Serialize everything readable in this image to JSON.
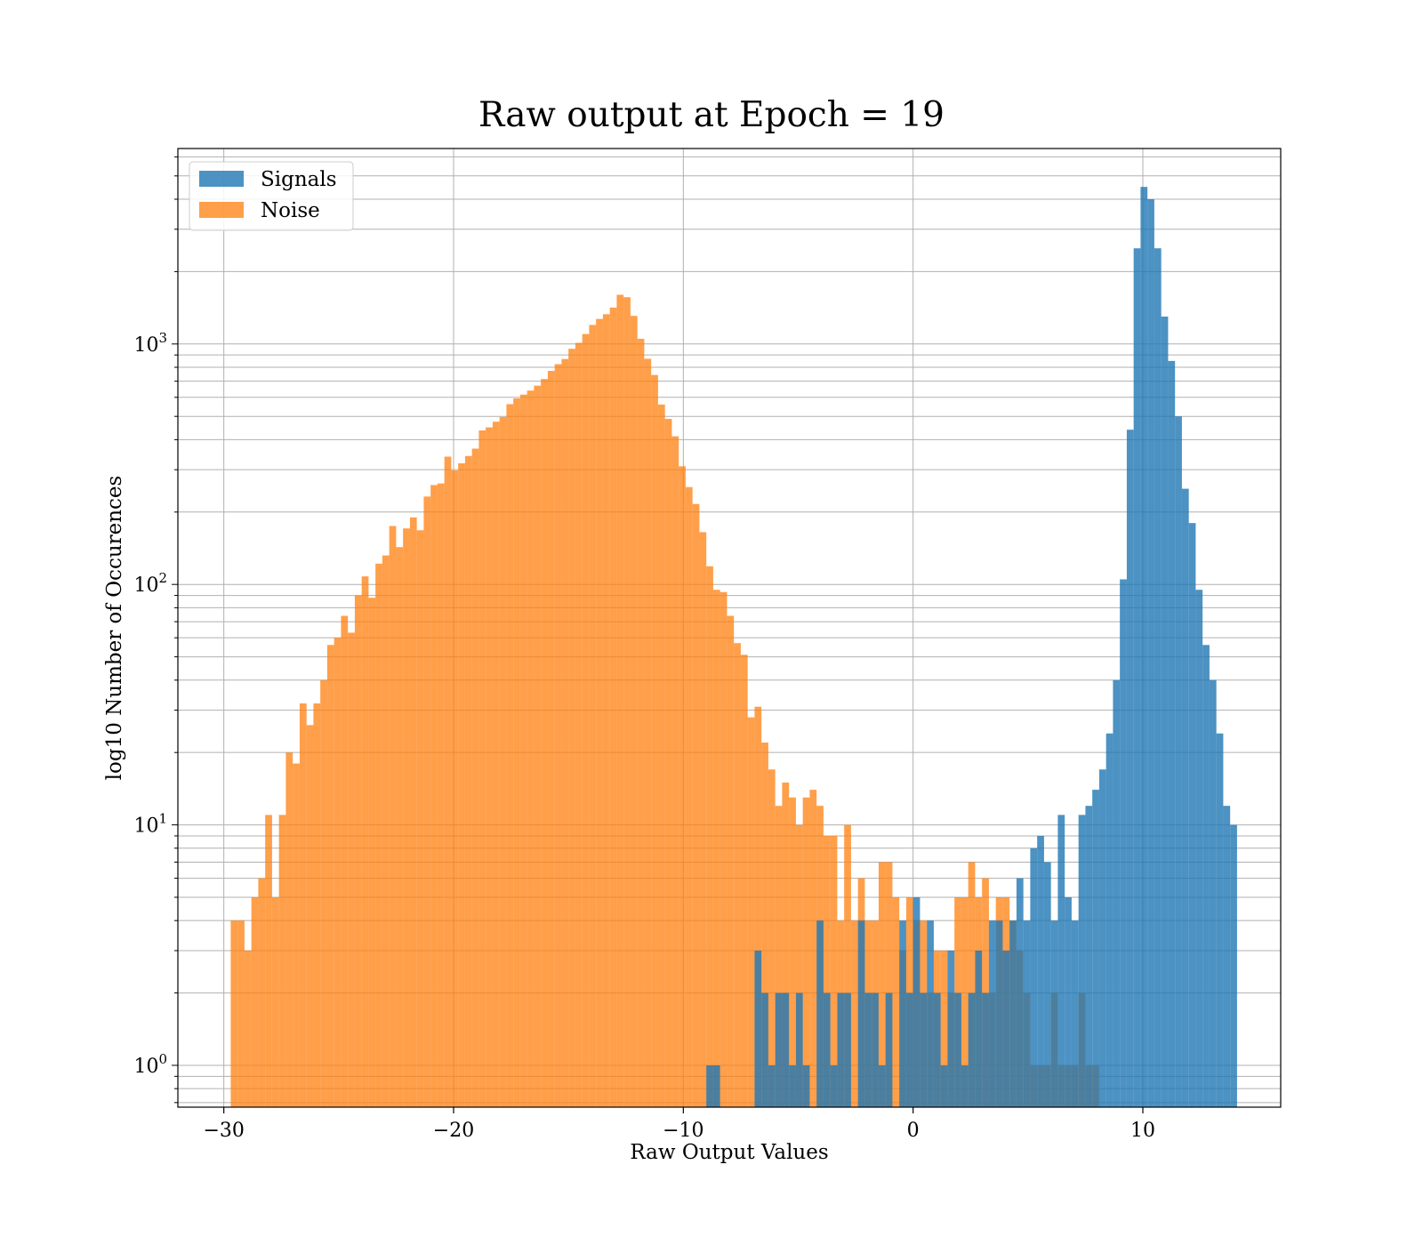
{
  "chart_data": {
    "type": "histogram",
    "title": "Raw output at Epoch = 19",
    "xlabel": "Raw Output Values",
    "ylabel": "log10 Number of Occurences",
    "xscale": "linear",
    "yscale": "log",
    "xlim": [
      -32,
      16
    ],
    "ylim": [
      0.67,
      6500
    ],
    "xticks": [
      -30,
      -20,
      -10,
      0,
      10
    ],
    "xtick_labels": [
      "−30",
      "−20",
      "−10",
      "0",
      "10"
    ],
    "yticks": [
      1,
      10,
      100,
      1000
    ],
    "ytick_labels": [
      {
        "base": "10",
        "exp": "0"
      },
      {
        "base": "10",
        "exp": "1"
      },
      {
        "base": "10",
        "exp": "2"
      },
      {
        "base": "10",
        "exp": "3"
      }
    ],
    "grid": true,
    "legend": {
      "position": "top-left",
      "entries": [
        "Signals",
        "Noise"
      ]
    },
    "bin_width": 0.3,
    "series": [
      {
        "name": "Noise",
        "color": "#ff7f0e",
        "opacity": 0.75,
        "bins": [
          [
            -29.7,
            -29.4,
            4
          ],
          [
            -29.4,
            -29.1,
            4
          ],
          [
            -29.1,
            -28.8,
            3
          ],
          [
            -28.8,
            -28.5,
            5
          ],
          [
            -28.5,
            -28.2,
            6
          ],
          [
            -28.2,
            -27.9,
            11
          ],
          [
            -27.9,
            -27.6,
            5
          ],
          [
            -27.6,
            -27.3,
            11
          ],
          [
            -27.3,
            -27.0,
            20
          ],
          [
            -27.0,
            -26.7,
            18
          ],
          [
            -26.7,
            -26.4,
            32
          ],
          [
            -26.4,
            -26.1,
            26
          ],
          [
            -26.1,
            -25.8,
            32
          ],
          [
            -25.8,
            -25.5,
            40
          ],
          [
            -25.5,
            -25.2,
            56
          ],
          [
            -25.2,
            -24.9,
            60
          ],
          [
            -24.9,
            -24.6,
            74
          ],
          [
            -24.6,
            -24.3,
            63
          ],
          [
            -24.3,
            -24.0,
            90
          ],
          [
            -24.0,
            -23.7,
            108
          ],
          [
            -23.7,
            -23.4,
            88
          ],
          [
            -23.4,
            -23.1,
            122
          ],
          [
            -23.1,
            -22.8,
            132
          ],
          [
            -22.8,
            -22.5,
            175
          ],
          [
            -22.5,
            -22.2,
            143
          ],
          [
            -22.2,
            -21.9,
            171
          ],
          [
            -21.9,
            -21.6,
            190
          ],
          [
            -21.6,
            -21.3,
            168
          ],
          [
            -21.3,
            -21.0,
            232
          ],
          [
            -21.0,
            -20.7,
            259
          ],
          [
            -20.7,
            -20.4,
            263
          ],
          [
            -20.4,
            -20.1,
            340
          ],
          [
            -20.1,
            -19.8,
            298
          ],
          [
            -19.8,
            -19.5,
            319
          ],
          [
            -19.5,
            -19.2,
            342
          ],
          [
            -19.2,
            -18.9,
            367
          ],
          [
            -18.9,
            -18.6,
            437
          ],
          [
            -18.6,
            -18.3,
            450
          ],
          [
            -18.3,
            -18.0,
            475
          ],
          [
            -18.0,
            -17.7,
            497
          ],
          [
            -17.7,
            -17.4,
            562
          ],
          [
            -17.4,
            -17.1,
            594
          ],
          [
            -17.1,
            -16.8,
            616
          ],
          [
            -16.8,
            -16.5,
            640
          ],
          [
            -16.5,
            -16.2,
            671
          ],
          [
            -16.2,
            -15.9,
            715
          ],
          [
            -15.9,
            -15.6,
            773
          ],
          [
            -15.6,
            -15.3,
            824
          ],
          [
            -15.3,
            -15.0,
            866
          ],
          [
            -15.0,
            -14.7,
            955
          ],
          [
            -14.7,
            -14.4,
            1011
          ],
          [
            -14.4,
            -14.1,
            1100
          ],
          [
            -14.1,
            -13.8,
            1200
          ],
          [
            -13.8,
            -13.5,
            1271
          ],
          [
            -13.5,
            -13.2,
            1330
          ],
          [
            -13.2,
            -12.9,
            1417
          ],
          [
            -12.9,
            -12.6,
            1602
          ],
          [
            -12.6,
            -12.3,
            1565
          ],
          [
            -12.3,
            -12.0,
            1309
          ],
          [
            -12.0,
            -11.7,
            1051
          ],
          [
            -11.7,
            -11.4,
            868
          ],
          [
            -11.4,
            -11.1,
            743
          ],
          [
            -11.1,
            -10.8,
            560
          ],
          [
            -10.8,
            -10.5,
            488
          ],
          [
            -10.5,
            -10.2,
            413
          ],
          [
            -10.2,
            -9.9,
            310
          ],
          [
            -9.9,
            -9.6,
            254
          ],
          [
            -9.6,
            -9.3,
            216
          ],
          [
            -9.3,
            -9.0,
            165
          ],
          [
            -9.0,
            -8.7,
            119
          ],
          [
            -8.7,
            -8.4,
            95
          ],
          [
            -8.4,
            -8.1,
            93
          ],
          [
            -8.1,
            -7.8,
            74
          ],
          [
            -7.8,
            -7.5,
            57
          ],
          [
            -7.5,
            -7.2,
            51
          ],
          [
            -7.2,
            -6.9,
            28
          ],
          [
            -6.9,
            -6.6,
            31
          ],
          [
            -6.6,
            -6.3,
            22
          ],
          [
            -6.3,
            -6.0,
            17
          ],
          [
            -6.0,
            -5.7,
            12
          ],
          [
            -5.7,
            -5.4,
            15
          ],
          [
            -5.4,
            -5.1,
            13
          ],
          [
            -5.1,
            -4.8,
            10
          ],
          [
            -4.8,
            -4.5,
            13
          ],
          [
            -4.5,
            -4.2,
            14
          ],
          [
            -4.2,
            -3.9,
            12
          ],
          [
            -3.9,
            -3.6,
            9
          ],
          [
            -3.6,
            -3.3,
            9
          ],
          [
            -3.3,
            -3.0,
            4
          ],
          [
            -3.0,
            -2.7,
            10
          ],
          [
            -2.7,
            -2.4,
            4
          ],
          [
            -2.4,
            -2.1,
            6
          ],
          [
            -2.1,
            -1.8,
            4
          ],
          [
            -1.8,
            -1.5,
            4
          ],
          [
            -1.5,
            -1.2,
            7
          ],
          [
            -1.2,
            -0.9,
            7
          ],
          [
            -0.9,
            -0.6,
            5
          ],
          [
            -0.6,
            -0.3,
            3
          ],
          [
            -0.3,
            0.0,
            5
          ],
          [
            0.0,
            0.3,
            4
          ],
          [
            0.3,
            0.6,
            4
          ],
          [
            0.6,
            0.9,
            2
          ],
          [
            0.9,
            1.2,
            3
          ],
          [
            1.2,
            1.5,
            3
          ],
          [
            1.5,
            1.8,
            2
          ],
          [
            1.8,
            2.1,
            5
          ],
          [
            2.1,
            2.4,
            5
          ],
          [
            2.4,
            2.7,
            7
          ],
          [
            2.7,
            3.0,
            5
          ],
          [
            3.0,
            3.3,
            6
          ],
          [
            3.3,
            3.6,
            2
          ],
          [
            3.6,
            3.9,
            5
          ],
          [
            3.9,
            4.2,
            5
          ],
          [
            4.2,
            4.5,
            4
          ],
          [
            4.5,
            4.8,
            3
          ],
          [
            4.8,
            5.1,
            2
          ],
          [
            5.1,
            5.4,
            1
          ],
          [
            5.4,
            5.7,
            1
          ],
          [
            5.7,
            6.0,
            1
          ],
          [
            6.0,
            6.3,
            2
          ],
          [
            6.3,
            6.6,
            1
          ],
          [
            6.6,
            6.9,
            1
          ],
          [
            6.9,
            7.2,
            1
          ],
          [
            7.2,
            7.5,
            2
          ],
          [
            7.5,
            7.8,
            1
          ],
          [
            7.8,
            8.1,
            1
          ]
        ]
      },
      {
        "name": "Signals",
        "color": "#1f77b4",
        "opacity": 0.8,
        "bins": [
          [
            -9.0,
            -8.7,
            1
          ],
          [
            -8.7,
            -8.4,
            1
          ],
          [
            -6.9,
            -6.6,
            3
          ],
          [
            -6.6,
            -6.3,
            2
          ],
          [
            -6.3,
            -6.0,
            1
          ],
          [
            -6.0,
            -5.7,
            2
          ],
          [
            -5.7,
            -5.4,
            2
          ],
          [
            -5.4,
            -5.1,
            1
          ],
          [
            -5.1,
            -4.8,
            2
          ],
          [
            -4.8,
            -4.5,
            1
          ],
          [
            -4.2,
            -3.9,
            4
          ],
          [
            -3.9,
            -3.6,
            2
          ],
          [
            -3.6,
            -3.3,
            1
          ],
          [
            -3.3,
            -3.0,
            2
          ],
          [
            -3.0,
            -2.7,
            2
          ],
          [
            -2.4,
            -2.1,
            4
          ],
          [
            -2.1,
            -1.8,
            2
          ],
          [
            -1.8,
            -1.5,
            2
          ],
          [
            -1.5,
            -1.2,
            1
          ],
          [
            -1.2,
            -0.9,
            2
          ],
          [
            -0.6,
            -0.3,
            4
          ],
          [
            -0.3,
            0.0,
            2
          ],
          [
            0.0,
            0.3,
            5
          ],
          [
            0.3,
            0.6,
            2
          ],
          [
            0.6,
            0.9,
            4
          ],
          [
            0.9,
            1.2,
            2
          ],
          [
            1.2,
            1.5,
            1
          ],
          [
            1.5,
            1.8,
            3
          ],
          [
            1.8,
            2.1,
            2
          ],
          [
            2.1,
            2.4,
            1
          ],
          [
            2.4,
            2.7,
            2
          ],
          [
            2.7,
            3.0,
            3
          ],
          [
            3.0,
            3.3,
            2
          ],
          [
            3.3,
            3.6,
            4
          ],
          [
            3.6,
            3.9,
            4
          ],
          [
            3.9,
            4.2,
            3
          ],
          [
            4.2,
            4.5,
            4
          ],
          [
            4.5,
            4.8,
            6
          ],
          [
            4.8,
            5.1,
            4
          ],
          [
            5.1,
            5.4,
            8
          ],
          [
            5.4,
            5.7,
            9
          ],
          [
            5.7,
            6.0,
            7
          ],
          [
            6.0,
            6.3,
            4
          ],
          [
            6.3,
            6.6,
            11
          ],
          [
            6.6,
            6.9,
            5
          ],
          [
            6.9,
            7.2,
            4
          ],
          [
            7.2,
            7.5,
            11
          ],
          [
            7.5,
            7.8,
            12
          ],
          [
            7.8,
            8.1,
            14
          ],
          [
            8.1,
            8.4,
            17
          ],
          [
            8.4,
            8.7,
            24
          ],
          [
            8.7,
            9.0,
            40
          ],
          [
            9.0,
            9.3,
            105
          ],
          [
            9.3,
            9.6,
            440
          ],
          [
            9.6,
            9.9,
            2500
          ],
          [
            9.9,
            10.2,
            4500
          ],
          [
            10.2,
            10.5,
            4000
          ],
          [
            10.5,
            10.8,
            2500
          ],
          [
            10.8,
            11.1,
            1300
          ],
          [
            11.1,
            11.4,
            850
          ],
          [
            11.4,
            11.7,
            500
          ],
          [
            11.7,
            12.0,
            250
          ],
          [
            12.0,
            12.3,
            180
          ],
          [
            12.3,
            12.6,
            95
          ],
          [
            12.6,
            12.9,
            56
          ],
          [
            12.9,
            13.2,
            40
          ],
          [
            13.2,
            13.5,
            24
          ],
          [
            13.5,
            13.8,
            12
          ],
          [
            13.8,
            14.1,
            10
          ]
        ]
      }
    ]
  }
}
